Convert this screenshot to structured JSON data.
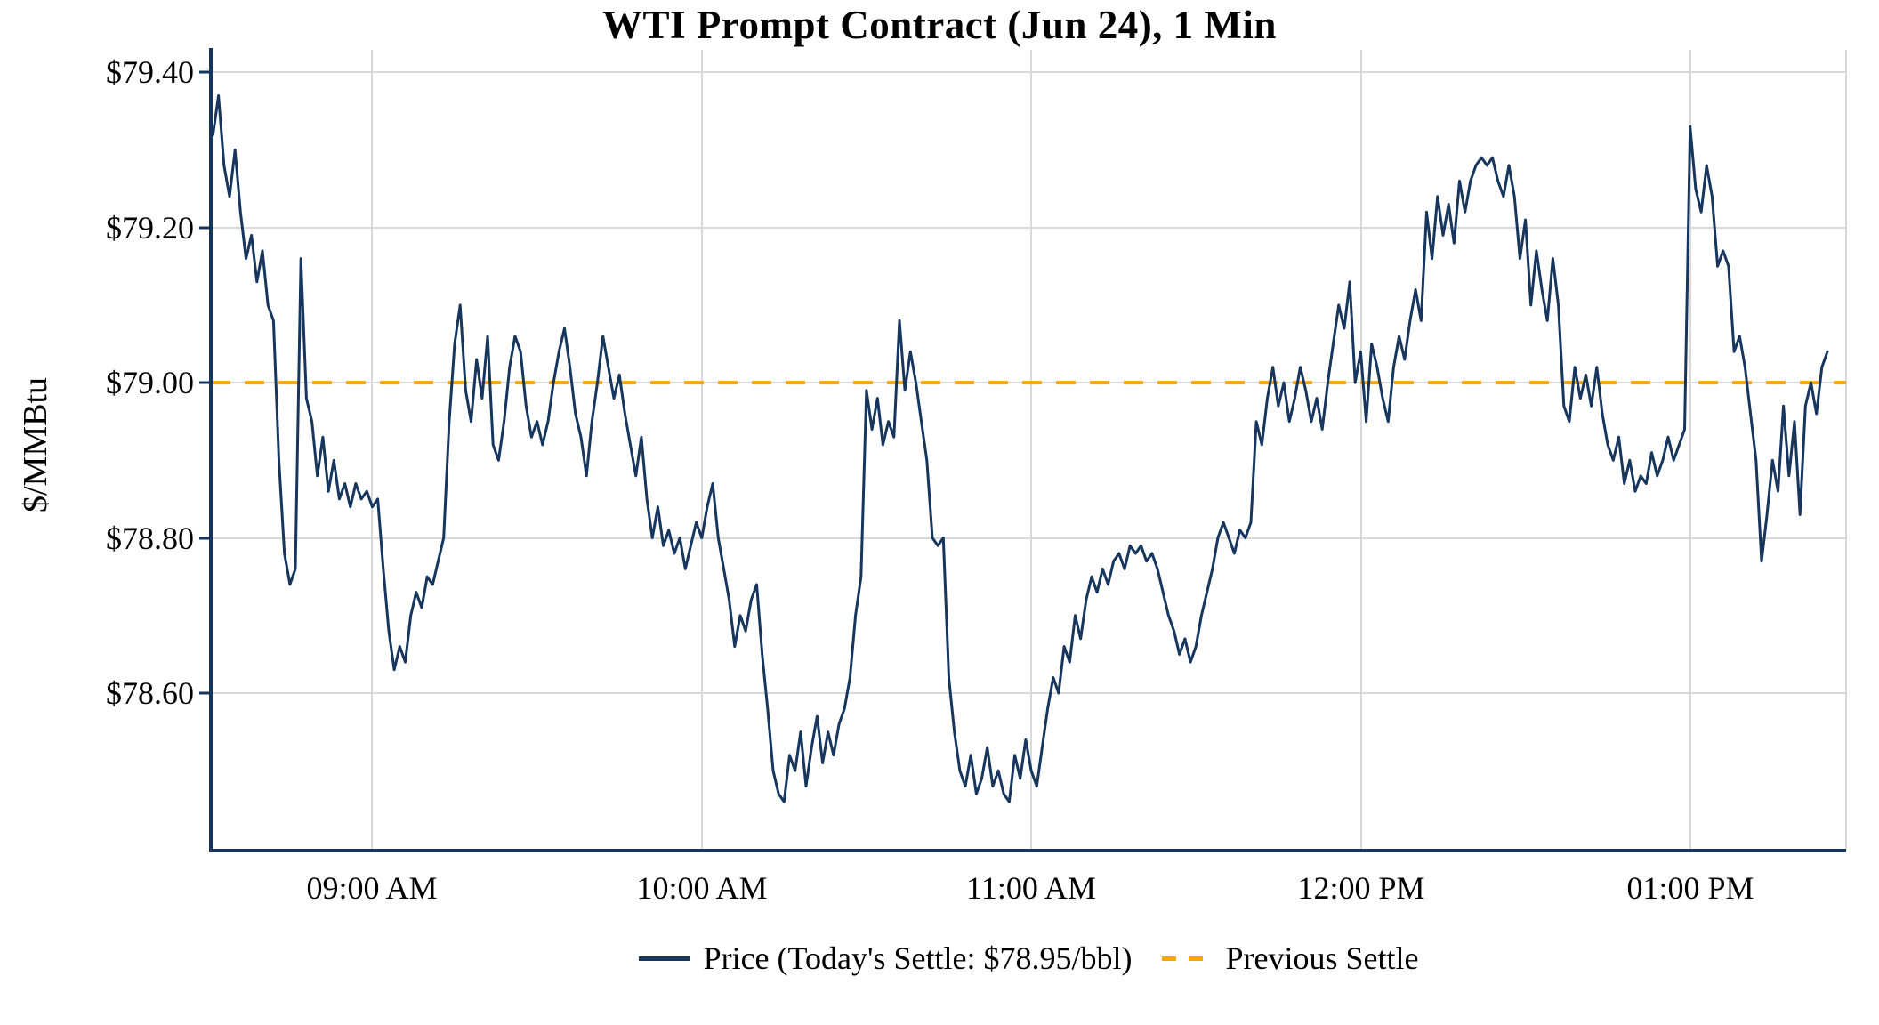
{
  "chart_data": {
    "type": "line",
    "title": "WTI Prompt Contract (Jun 24), 1 Min",
    "ylabel": "$/MMBtu",
    "xlabel": "",
    "grid": true,
    "grid_color": "#d9d9d9",
    "axis_color": "#17365d",
    "background_color": "#ffffff",
    "ylim": [
      78.397,
      79.429
    ],
    "x_domain_minutes": [
      510.6,
      808.4
    ],
    "previous_settle": 79.0,
    "today_settle": 78.95,
    "yticks": [
      {
        "value": 79.4,
        "label": "$79.40"
      },
      {
        "value": 79.2,
        "label": "$79.20"
      },
      {
        "value": 79.0,
        "label": "$79.00"
      },
      {
        "value": 78.8,
        "label": "$78.80"
      },
      {
        "value": 78.6,
        "label": "$78.60"
      }
    ],
    "xticks": [
      {
        "minutes": 540,
        "label": "09:00 AM"
      },
      {
        "minutes": 600,
        "label": "10:00 AM"
      },
      {
        "minutes": 660,
        "label": "11:00 AM"
      },
      {
        "minutes": 720,
        "label": "12:00 PM"
      },
      {
        "minutes": 780,
        "label": "01:00 PM"
      }
    ],
    "legend": {
      "position": "bottom-center",
      "entries": [
        {
          "label": "Price (Today's Settle: $78.95/bbl)",
          "style": "solid",
          "color": "#17365d"
        },
        {
          "label": "Previous Settle",
          "style": "dashed",
          "color": "#FFA500"
        }
      ]
    },
    "series": [
      {
        "name": "Price",
        "color": "#17365d",
        "style": "solid",
        "points": [
          [
            511,
            79.32
          ],
          [
            512,
            79.37
          ],
          [
            513,
            79.28
          ],
          [
            514,
            79.24
          ],
          [
            515,
            79.3
          ],
          [
            516,
            79.22
          ],
          [
            517,
            79.16
          ],
          [
            518,
            79.19
          ],
          [
            519,
            79.13
          ],
          [
            520,
            79.17
          ],
          [
            521,
            79.1
          ],
          [
            522,
            79.08
          ],
          [
            523,
            78.9
          ],
          [
            524,
            78.78
          ],
          [
            525,
            78.74
          ],
          [
            526,
            78.76
          ],
          [
            527,
            79.16
          ],
          [
            528,
            78.98
          ],
          [
            529,
            78.95
          ],
          [
            530,
            78.88
          ],
          [
            531,
            78.93
          ],
          [
            532,
            78.86
          ],
          [
            533,
            78.9
          ],
          [
            534,
            78.85
          ],
          [
            535,
            78.87
          ],
          [
            536,
            78.84
          ],
          [
            537,
            78.87
          ],
          [
            538,
            78.85
          ],
          [
            539,
            78.86
          ],
          [
            540,
            78.84
          ],
          [
            541,
            78.85
          ],
          [
            542,
            78.76
          ],
          [
            543,
            78.68
          ],
          [
            544,
            78.63
          ],
          [
            545,
            78.66
          ],
          [
            546,
            78.64
          ],
          [
            547,
            78.7
          ],
          [
            548,
            78.73
          ],
          [
            549,
            78.71
          ],
          [
            550,
            78.75
          ],
          [
            551,
            78.74
          ],
          [
            552,
            78.77
          ],
          [
            553,
            78.8
          ],
          [
            554,
            78.95
          ],
          [
            555,
            79.05
          ],
          [
            556,
            79.1
          ],
          [
            557,
            78.99
          ],
          [
            558,
            78.95
          ],
          [
            559,
            79.03
          ],
          [
            560,
            78.98
          ],
          [
            561,
            79.06
          ],
          [
            562,
            78.92
          ],
          [
            563,
            78.9
          ],
          [
            564,
            78.95
          ],
          [
            565,
            79.02
          ],
          [
            566,
            79.06
          ],
          [
            567,
            79.04
          ],
          [
            568,
            78.97
          ],
          [
            569,
            78.93
          ],
          [
            570,
            78.95
          ],
          [
            571,
            78.92
          ],
          [
            572,
            78.95
          ],
          [
            573,
            79.0
          ],
          [
            574,
            79.04
          ],
          [
            575,
            79.07
          ],
          [
            576,
            79.02
          ],
          [
            577,
            78.96
          ],
          [
            578,
            78.93
          ],
          [
            579,
            78.88
          ],
          [
            580,
            78.95
          ],
          [
            581,
            79.0
          ],
          [
            582,
            79.06
          ],
          [
            583,
            79.02
          ],
          [
            584,
            78.98
          ],
          [
            585,
            79.01
          ],
          [
            586,
            78.96
          ],
          [
            587,
            78.92
          ],
          [
            588,
            78.88
          ],
          [
            589,
            78.93
          ],
          [
            590,
            78.85
          ],
          [
            591,
            78.8
          ],
          [
            592,
            78.84
          ],
          [
            593,
            78.79
          ],
          [
            594,
            78.81
          ],
          [
            595,
            78.78
          ],
          [
            596,
            78.8
          ],
          [
            597,
            78.76
          ],
          [
            598,
            78.79
          ],
          [
            599,
            78.82
          ],
          [
            600,
            78.8
          ],
          [
            601,
            78.84
          ],
          [
            602,
            78.87
          ],
          [
            603,
            78.8
          ],
          [
            604,
            78.76
          ],
          [
            605,
            78.72
          ],
          [
            606,
            78.66
          ],
          [
            607,
            78.7
          ],
          [
            608,
            78.68
          ],
          [
            609,
            78.72
          ],
          [
            610,
            78.74
          ],
          [
            611,
            78.65
          ],
          [
            612,
            78.58
          ],
          [
            613,
            78.5
          ],
          [
            614,
            78.47
          ],
          [
            615,
            78.46
          ],
          [
            616,
            78.52
          ],
          [
            617,
            78.5
          ],
          [
            618,
            78.55
          ],
          [
            619,
            78.48
          ],
          [
            620,
            78.53
          ],
          [
            621,
            78.57
          ],
          [
            622,
            78.51
          ],
          [
            623,
            78.55
          ],
          [
            624,
            78.52
          ],
          [
            625,
            78.56
          ],
          [
            626,
            78.58
          ],
          [
            627,
            78.62
          ],
          [
            628,
            78.7
          ],
          [
            629,
            78.75
          ],
          [
            630,
            78.99
          ],
          [
            631,
            78.94
          ],
          [
            632,
            78.98
          ],
          [
            633,
            78.92
          ],
          [
            634,
            78.95
          ],
          [
            635,
            78.93
          ],
          [
            636,
            79.08
          ],
          [
            637,
            78.99
          ],
          [
            638,
            79.04
          ],
          [
            639,
            79.0
          ],
          [
            640,
            78.95
          ],
          [
            641,
            78.9
          ],
          [
            642,
            78.8
          ],
          [
            643,
            78.79
          ],
          [
            644,
            78.8
          ],
          [
            645,
            78.62
          ],
          [
            646,
            78.55
          ],
          [
            647,
            78.5
          ],
          [
            648,
            78.48
          ],
          [
            649,
            78.52
          ],
          [
            650,
            78.47
          ],
          [
            651,
            78.49
          ],
          [
            652,
            78.53
          ],
          [
            653,
            78.48
          ],
          [
            654,
            78.5
          ],
          [
            655,
            78.47
          ],
          [
            656,
            78.46
          ],
          [
            657,
            78.52
          ],
          [
            658,
            78.49
          ],
          [
            659,
            78.54
          ],
          [
            660,
            78.5
          ],
          [
            661,
            78.48
          ],
          [
            662,
            78.53
          ],
          [
            663,
            78.58
          ],
          [
            664,
            78.62
          ],
          [
            665,
            78.6
          ],
          [
            666,
            78.66
          ],
          [
            667,
            78.64
          ],
          [
            668,
            78.7
          ],
          [
            669,
            78.67
          ],
          [
            670,
            78.72
          ],
          [
            671,
            78.75
          ],
          [
            672,
            78.73
          ],
          [
            673,
            78.76
          ],
          [
            674,
            78.74
          ],
          [
            675,
            78.77
          ],
          [
            676,
            78.78
          ],
          [
            677,
            78.76
          ],
          [
            678,
            78.79
          ],
          [
            679,
            78.78
          ],
          [
            680,
            78.79
          ],
          [
            681,
            78.77
          ],
          [
            682,
            78.78
          ],
          [
            683,
            78.76
          ],
          [
            684,
            78.73
          ],
          [
            685,
            78.7
          ],
          [
            686,
            78.68
          ],
          [
            687,
            78.65
          ],
          [
            688,
            78.67
          ],
          [
            689,
            78.64
          ],
          [
            690,
            78.66
          ],
          [
            691,
            78.7
          ],
          [
            692,
            78.73
          ],
          [
            693,
            78.76
          ],
          [
            694,
            78.8
          ],
          [
            695,
            78.82
          ],
          [
            696,
            78.8
          ],
          [
            697,
            78.78
          ],
          [
            698,
            78.81
          ],
          [
            699,
            78.8
          ],
          [
            700,
            78.82
          ],
          [
            701,
            78.95
          ],
          [
            702,
            78.92
          ],
          [
            703,
            78.98
          ],
          [
            704,
            79.02
          ],
          [
            705,
            78.97
          ],
          [
            706,
            79.0
          ],
          [
            707,
            78.95
          ],
          [
            708,
            78.98
          ],
          [
            709,
            79.02
          ],
          [
            710,
            78.99
          ],
          [
            711,
            78.95
          ],
          [
            712,
            78.98
          ],
          [
            713,
            78.94
          ],
          [
            714,
            79.0
          ],
          [
            715,
            79.05
          ],
          [
            716,
            79.1
          ],
          [
            717,
            79.07
          ],
          [
            718,
            79.13
          ],
          [
            719,
            79.0
          ],
          [
            720,
            79.04
          ],
          [
            721,
            78.95
          ],
          [
            722,
            79.05
          ],
          [
            723,
            79.02
          ],
          [
            724,
            78.98
          ],
          [
            725,
            78.95
          ],
          [
            726,
            79.02
          ],
          [
            727,
            79.06
          ],
          [
            728,
            79.03
          ],
          [
            729,
            79.08
          ],
          [
            730,
            79.12
          ],
          [
            731,
            79.08
          ],
          [
            732,
            79.22
          ],
          [
            733,
            79.16
          ],
          [
            734,
            79.24
          ],
          [
            735,
            79.19
          ],
          [
            736,
            79.23
          ],
          [
            737,
            79.18
          ],
          [
            738,
            79.26
          ],
          [
            739,
            79.22
          ],
          [
            740,
            79.26
          ],
          [
            741,
            79.28
          ],
          [
            742,
            79.29
          ],
          [
            743,
            79.28
          ],
          [
            744,
            79.29
          ],
          [
            745,
            79.26
          ],
          [
            746,
            79.24
          ],
          [
            747,
            79.28
          ],
          [
            748,
            79.24
          ],
          [
            749,
            79.16
          ],
          [
            750,
            79.21
          ],
          [
            751,
            79.1
          ],
          [
            752,
            79.17
          ],
          [
            753,
            79.12
          ],
          [
            754,
            79.08
          ],
          [
            755,
            79.16
          ],
          [
            756,
            79.1
          ],
          [
            757,
            78.97
          ],
          [
            758,
            78.95
          ],
          [
            759,
            79.02
          ],
          [
            760,
            78.98
          ],
          [
            761,
            79.01
          ],
          [
            762,
            78.97
          ],
          [
            763,
            79.02
          ],
          [
            764,
            78.96
          ],
          [
            765,
            78.92
          ],
          [
            766,
            78.9
          ],
          [
            767,
            78.93
          ],
          [
            768,
            78.87
          ],
          [
            769,
            78.9
          ],
          [
            770,
            78.86
          ],
          [
            771,
            78.88
          ],
          [
            772,
            78.87
          ],
          [
            773,
            78.91
          ],
          [
            774,
            78.88
          ],
          [
            775,
            78.9
          ],
          [
            776,
            78.93
          ],
          [
            777,
            78.9
          ],
          [
            778,
            78.92
          ],
          [
            779,
            78.94
          ],
          [
            780,
            79.33
          ],
          [
            781,
            79.25
          ],
          [
            782,
            79.22
          ],
          [
            783,
            79.28
          ],
          [
            784,
            79.24
          ],
          [
            785,
            79.15
          ],
          [
            786,
            79.17
          ],
          [
            787,
            79.15
          ],
          [
            788,
            79.04
          ],
          [
            789,
            79.06
          ],
          [
            790,
            79.02
          ],
          [
            791,
            78.96
          ],
          [
            792,
            78.9
          ],
          [
            793,
            78.77
          ],
          [
            794,
            78.83
          ],
          [
            795,
            78.9
          ],
          [
            796,
            78.86
          ],
          [
            797,
            78.97
          ],
          [
            798,
            78.88
          ],
          [
            799,
            78.95
          ],
          [
            800,
            78.83
          ],
          [
            801,
            78.97
          ],
          [
            802,
            79.0
          ],
          [
            803,
            78.96
          ],
          [
            804,
            79.02
          ],
          [
            805,
            79.04
          ]
        ]
      },
      {
        "name": "Previous Settle",
        "color": "#FFA500",
        "style": "dashed",
        "value": 79.0
      }
    ]
  }
}
